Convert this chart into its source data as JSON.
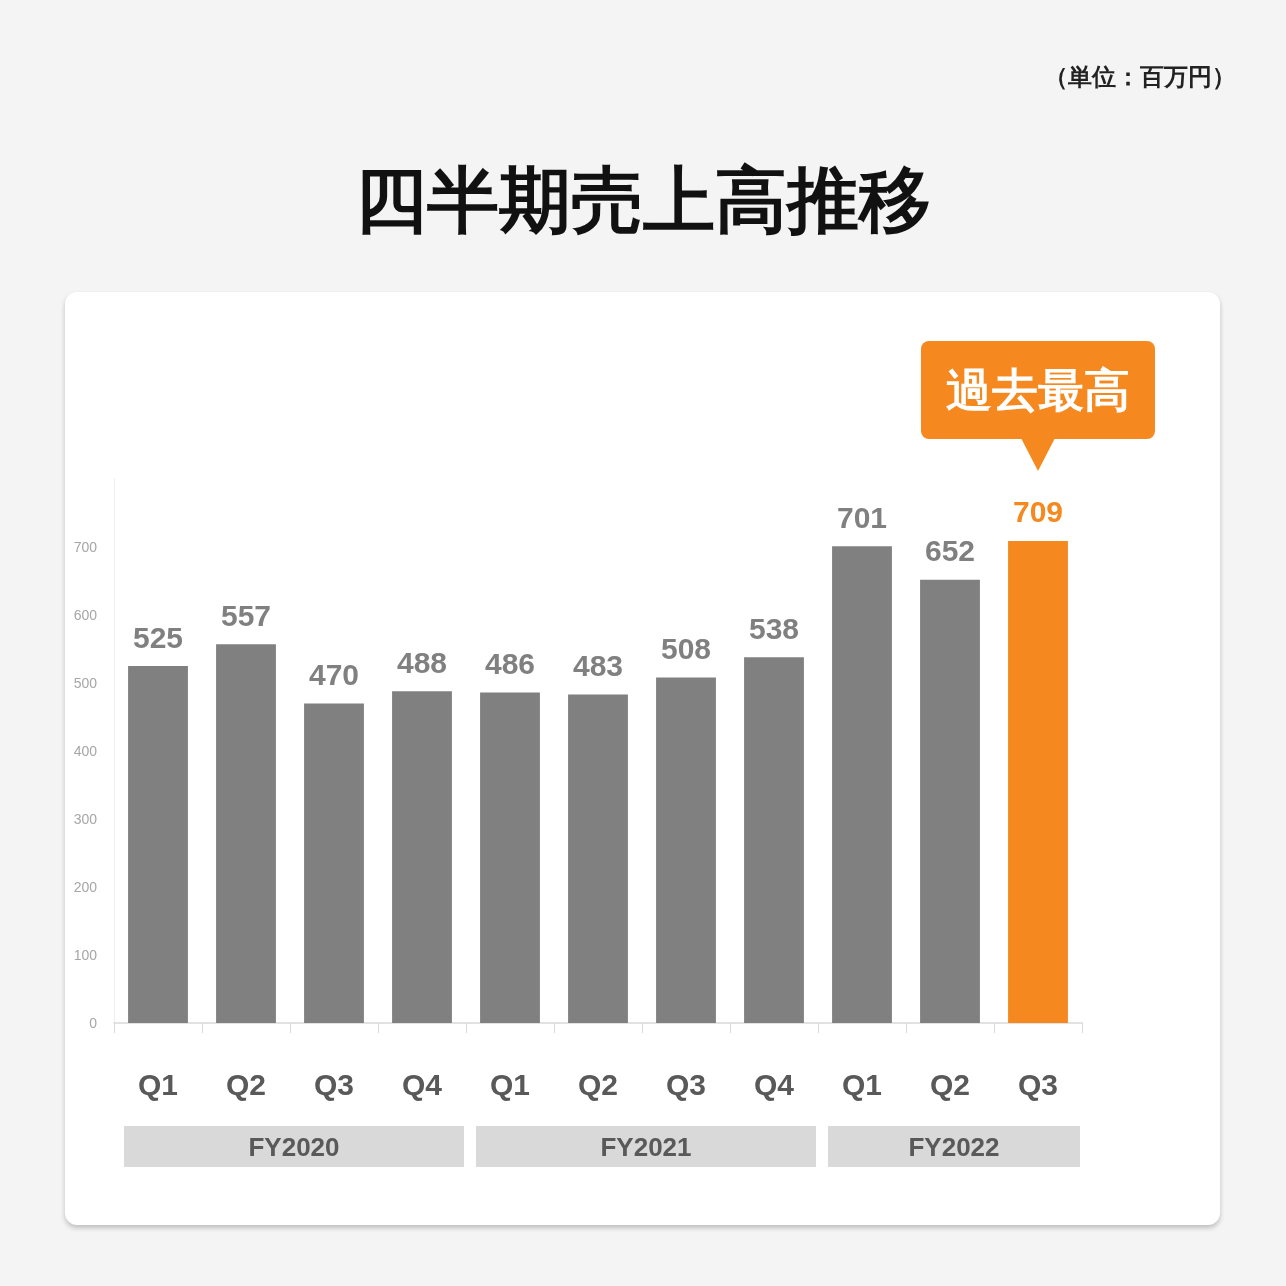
{
  "chart_data": {
    "type": "bar",
    "title": "四半期売上高推移",
    "categories": [
      "Q1",
      "Q2",
      "Q3",
      "Q4",
      "Q1",
      "Q2",
      "Q3",
      "Q4",
      "Q1",
      "Q2",
      "Q3"
    ],
    "values": [
      525,
      557,
      470,
      488,
      486,
      483,
      508,
      538,
      701,
      652,
      709
    ],
    "colors": [
      "#808080",
      "#808080",
      "#808080",
      "#808080",
      "#808080",
      "#808080",
      "#808080",
      "#808080",
      "#808080",
      "#808080",
      "#f5891f"
    ],
    "ylim": [
      0,
      800
    ],
    "yticks": [
      0,
      100,
      200,
      300,
      400,
      500,
      600,
      700
    ],
    "grid": false,
    "data_labels": true,
    "annotations": [
      "（単位：百万円）",
      "FY2020",
      "FY2021",
      "FY2022",
      {
        "text": "過去最高",
        "y": 709
      }
    ]
  }
}
